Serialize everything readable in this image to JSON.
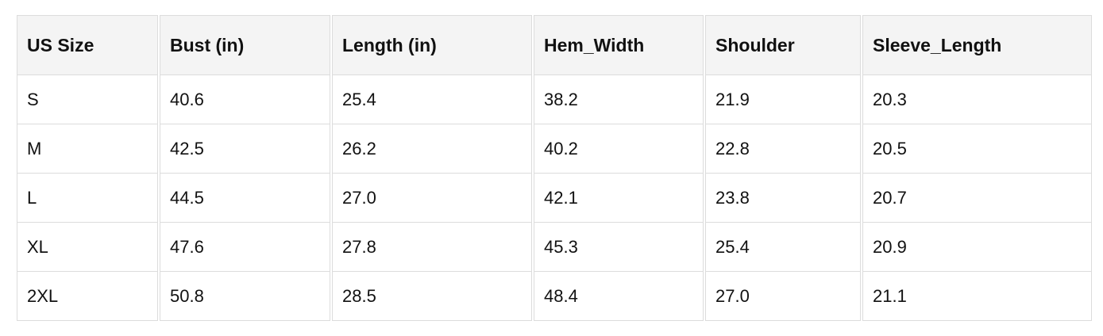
{
  "table": {
    "headers": [
      "US Size",
      "Bust (in)",
      "Length (in)",
      "Hem_Width",
      "Shoulder",
      "Sleeve_Length"
    ],
    "rows": [
      [
        "S",
        "40.6",
        "25.4",
        "38.2",
        "21.9",
        "20.3"
      ],
      [
        "M",
        "42.5",
        "26.2",
        "40.2",
        "22.8",
        "20.5"
      ],
      [
        "L",
        "44.5",
        "27.0",
        "42.1",
        "23.8",
        "20.7"
      ],
      [
        "XL",
        "47.6",
        "27.8",
        "45.3",
        "25.4",
        "20.9"
      ],
      [
        "2XL",
        "50.8",
        "28.5",
        "48.4",
        "27.0",
        "21.1"
      ]
    ]
  }
}
